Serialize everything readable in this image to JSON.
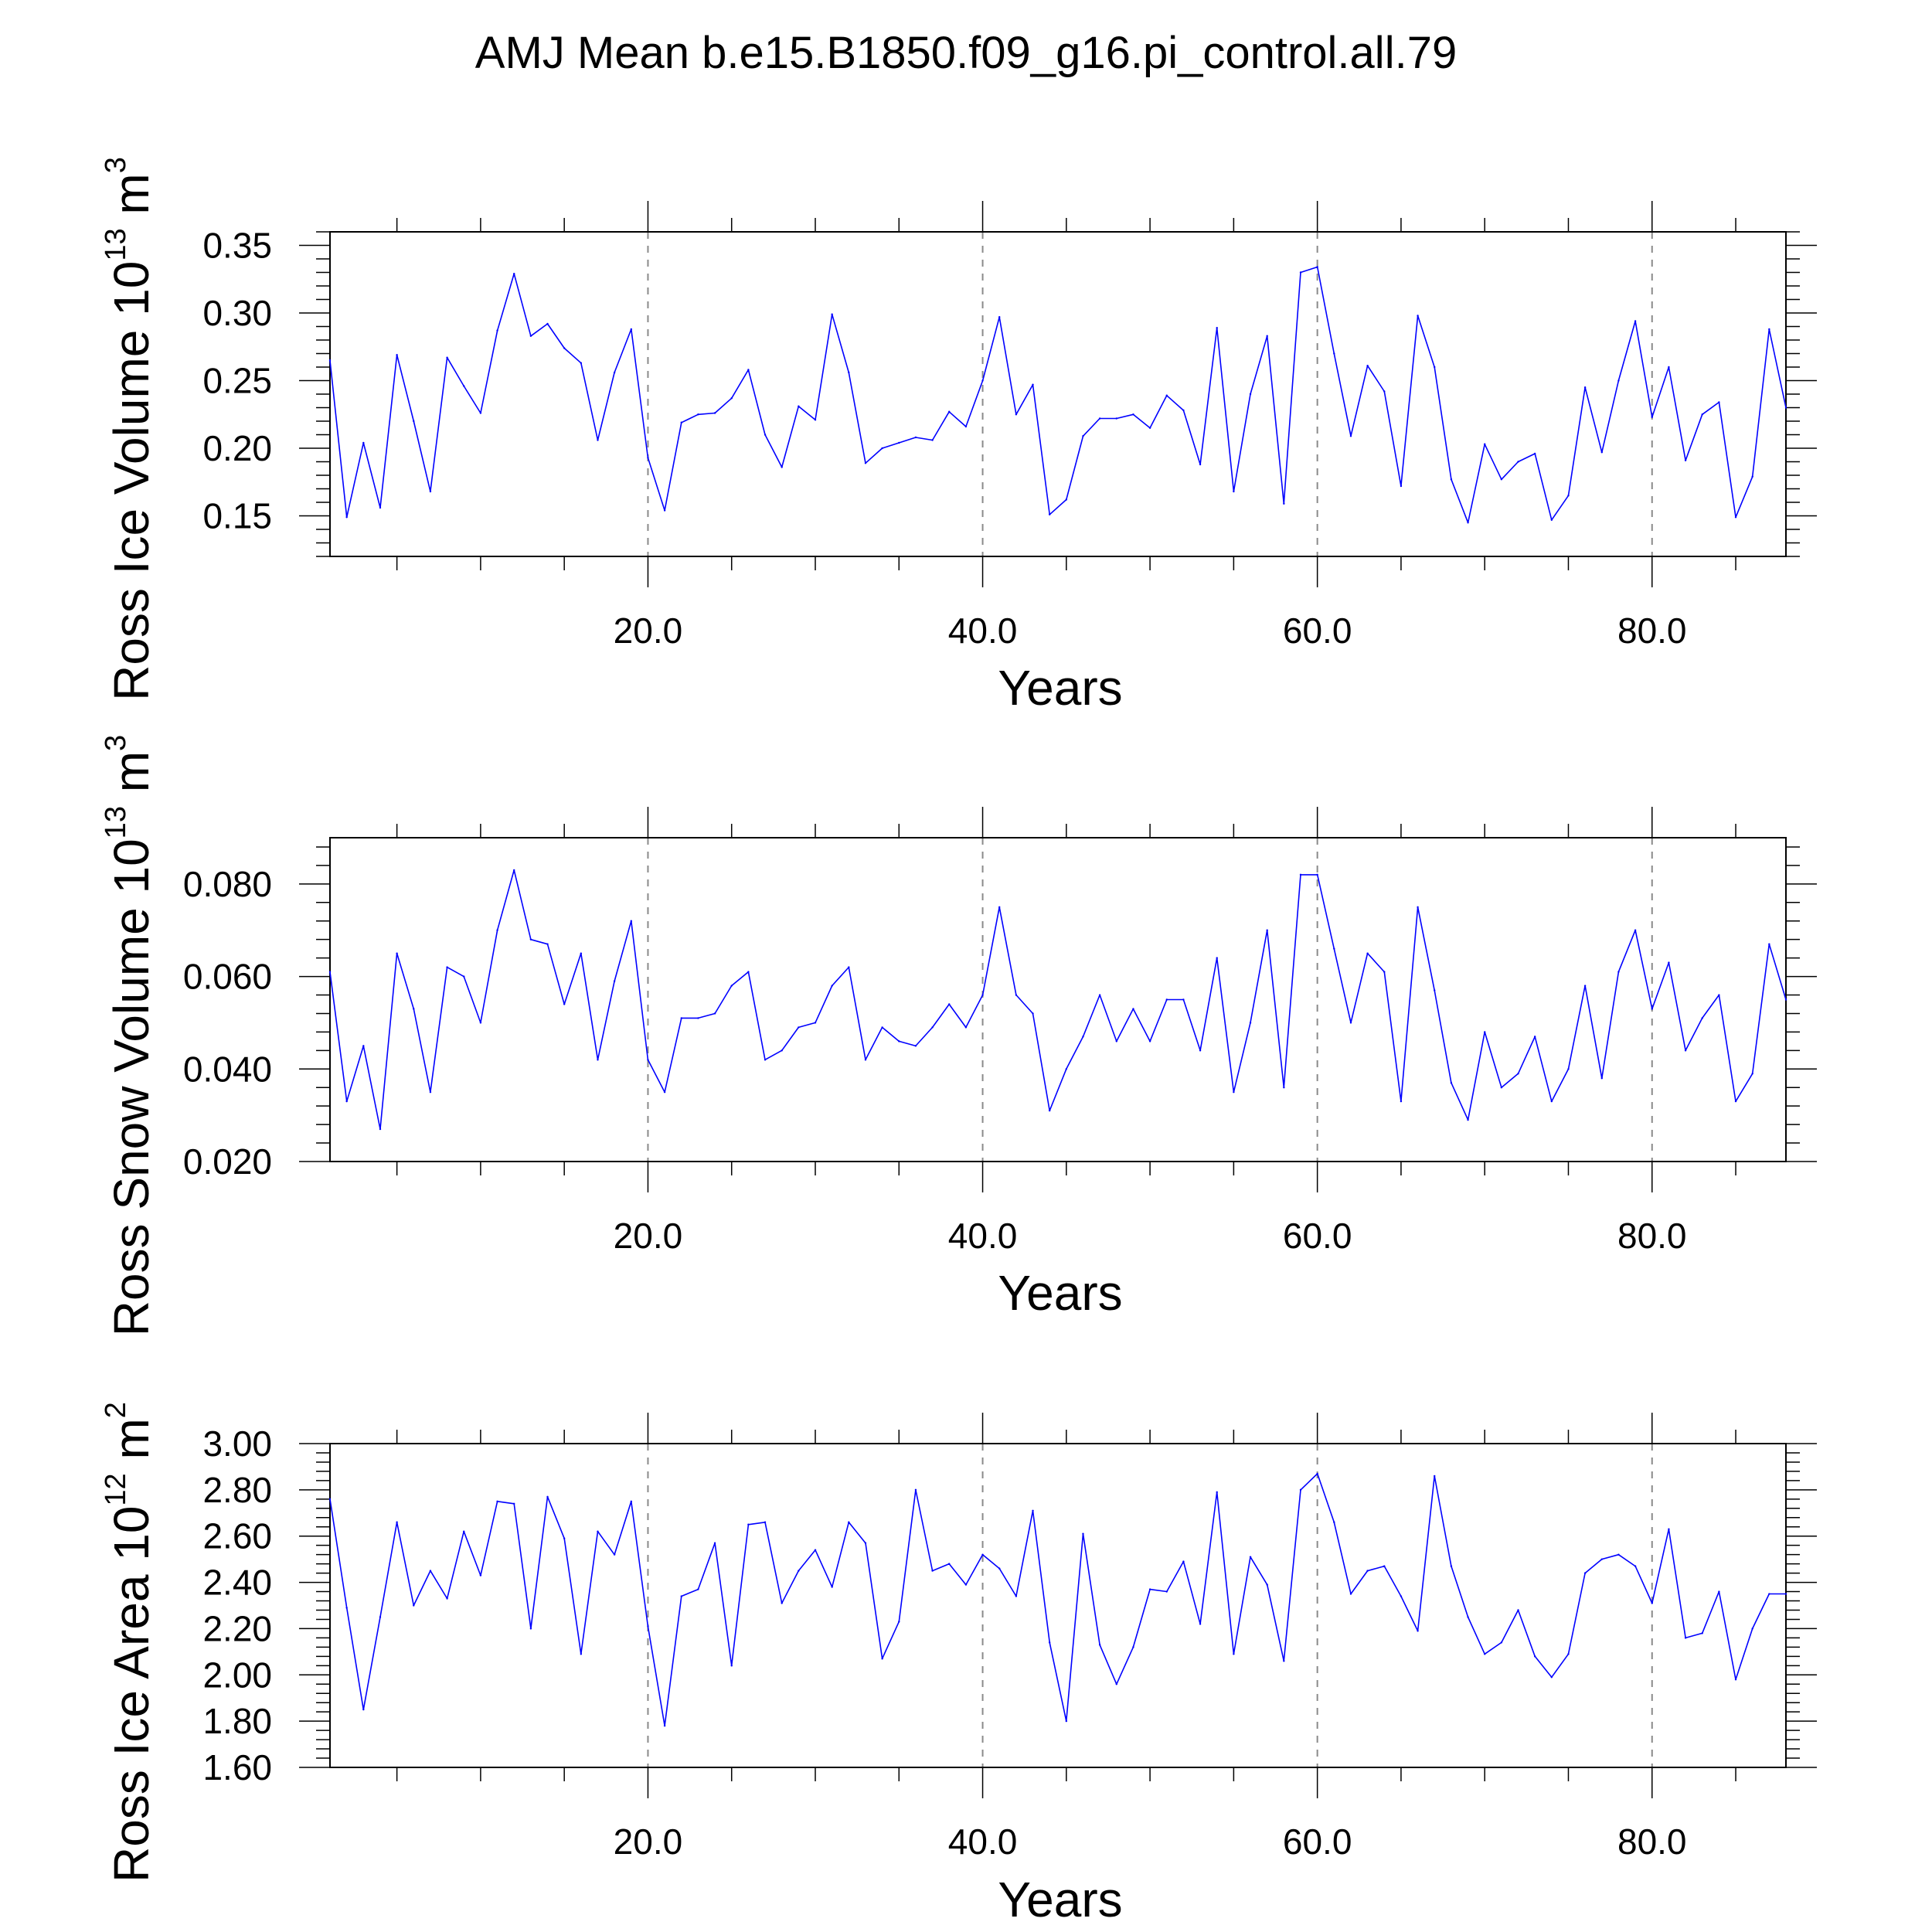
{
  "title": "AMJ Mean b.e15.B1850.f09_g16.pi_control.all.79",
  "colors": {
    "series": "#0000ff",
    "axis": "#000000",
    "grid": "#8a8a8a",
    "background": "#ffffff"
  },
  "chart_data": [
    {
      "type": "line",
      "ylabel": "Ross Ice Volume 10",
      "ylabel_sup": "13",
      "ylabel_unit": " m",
      "ylabel_unit_sup": "3",
      "xlabel": "Years",
      "xlim": [
        1,
        88
      ],
      "ylim": [
        0.12,
        0.36
      ],
      "xticks": [
        20,
        40,
        60,
        80
      ],
      "xtick_labels": [
        "20.0",
        "40.0",
        "60.0",
        "80.0"
      ],
      "yticks": [
        0.15,
        0.2,
        0.25,
        0.3,
        0.35
      ],
      "ytick_labels": [
        "0.15",
        "0.20",
        "0.25",
        "0.30",
        "0.35"
      ],
      "grid": "vertical dashed at major x ticks",
      "x_start": 1,
      "values": [
        0.265,
        0.149,
        0.204,
        0.156,
        0.269,
        0.22,
        0.168,
        0.267,
        0.246,
        0.226,
        0.287,
        0.329,
        0.283,
        0.292,
        0.274,
        0.263,
        0.206,
        0.256,
        0.288,
        0.193,
        0.154,
        0.219,
        0.225,
        0.226,
        0.237,
        0.258,
        0.21,
        0.186,
        0.231,
        0.221,
        0.299,
        0.256,
        0.189,
        0.2,
        0.204,
        0.208,
        0.206,
        0.227,
        0.216,
        0.25,
        0.297,
        0.225,
        0.247,
        0.151,
        0.162,
        0.209,
        0.222,
        0.222,
        0.225,
        0.215,
        0.239,
        0.228,
        0.188,
        0.289,
        0.168,
        0.24,
        0.283,
        0.159,
        0.33,
        0.334,
        0.27,
        0.209,
        0.261,
        0.242,
        0.172,
        0.298,
        0.26,
        0.177,
        0.145,
        0.203,
        0.177,
        0.19,
        0.196,
        0.147,
        0.165,
        0.245,
        0.197,
        0.25,
        0.294,
        0.223,
        0.26,
        0.191,
        0.225,
        0.234,
        0.149,
        0.179,
        0.288,
        0.23
      ]
    },
    {
      "type": "line",
      "ylabel": "Ross Snow Volume 10",
      "ylabel_sup": "13",
      "ylabel_unit": " m",
      "ylabel_unit_sup": "3",
      "xlabel": "Years",
      "xlim": [
        1,
        88
      ],
      "ylim": [
        0.02,
        0.09
      ],
      "xticks": [
        20,
        40,
        60,
        80
      ],
      "xtick_labels": [
        "20.0",
        "40.0",
        "60.0",
        "80.0"
      ],
      "yticks": [
        0.02,
        0.04,
        0.06,
        0.08
      ],
      "ytick_labels": [
        "0.020",
        "0.040",
        "0.060",
        "0.080"
      ],
      "grid": "vertical dashed at major x ticks",
      "x_start": 1,
      "values": [
        0.061,
        0.033,
        0.045,
        0.027,
        0.065,
        0.053,
        0.035,
        0.062,
        0.06,
        0.05,
        0.07,
        0.083,
        0.068,
        0.067,
        0.054,
        0.065,
        0.042,
        0.059,
        0.072,
        0.042,
        0.035,
        0.051,
        0.051,
        0.052,
        0.058,
        0.061,
        0.042,
        0.044,
        0.049,
        0.05,
        0.058,
        0.062,
        0.042,
        0.049,
        0.046,
        0.045,
        0.049,
        0.054,
        0.049,
        0.056,
        0.075,
        0.056,
        0.052,
        0.031,
        0.04,
        0.047,
        0.056,
        0.046,
        0.053,
        0.046,
        0.055,
        0.055,
        0.044,
        0.064,
        0.035,
        0.05,
        0.07,
        0.036,
        0.082,
        0.082,
        0.066,
        0.05,
        0.065,
        0.061,
        0.033,
        0.075,
        0.057,
        0.037,
        0.029,
        0.048,
        0.036,
        0.039,
        0.047,
        0.033,
        0.04,
        0.058,
        0.038,
        0.061,
        0.07,
        0.053,
        0.063,
        0.044,
        0.051,
        0.056,
        0.033,
        0.039,
        0.067,
        0.055
      ]
    },
    {
      "type": "line",
      "ylabel": "Ross Ice Area 10",
      "ylabel_sup": "12",
      "ylabel_unit": " m",
      "ylabel_unit_sup": "2",
      "xlabel": "Years",
      "xlim": [
        1,
        88
      ],
      "ylim": [
        1.6,
        3.0
      ],
      "xticks": [
        20,
        40,
        60,
        80
      ],
      "xtick_labels": [
        "20.0",
        "40.0",
        "60.0",
        "80.0"
      ],
      "yticks": [
        1.6,
        1.8,
        2.0,
        2.2,
        2.4,
        2.6,
        2.8,
        3.0
      ],
      "ytick_labels": [
        "1.60",
        "1.80",
        "2.00",
        "2.20",
        "2.40",
        "2.60",
        "2.80",
        "3.00"
      ],
      "grid": "vertical dashed at major x ticks",
      "x_start": 1,
      "values": [
        2.76,
        2.29,
        1.85,
        2.25,
        2.66,
        2.3,
        2.45,
        2.33,
        2.62,
        2.43,
        2.75,
        2.74,
        2.2,
        2.77,
        2.59,
        2.09,
        2.62,
        2.52,
        2.75,
        2.21,
        1.78,
        2.34,
        2.37,
        2.57,
        2.04,
        2.65,
        2.66,
        2.31,
        2.45,
        2.54,
        2.38,
        2.66,
        2.57,
        2.07,
        2.23,
        2.8,
        2.45,
        2.48,
        2.39,
        2.52,
        2.46,
        2.34,
        2.71,
        2.14,
        1.8,
        2.61,
        2.13,
        1.96,
        2.12,
        2.37,
        2.36,
        2.49,
        2.22,
        2.79,
        2.09,
        2.51,
        2.39,
        2.06,
        2.8,
        2.87,
        2.66,
        2.35,
        2.45,
        2.47,
        2.34,
        2.19,
        2.86,
        2.47,
        2.25,
        2.09,
        2.14,
        2.28,
        2.08,
        1.99,
        2.09,
        2.44,
        2.5,
        2.52,
        2.47,
        2.31,
        2.63,
        2.16,
        2.18,
        2.36,
        1.98,
        2.2,
        2.35,
        2.35
      ]
    }
  ]
}
